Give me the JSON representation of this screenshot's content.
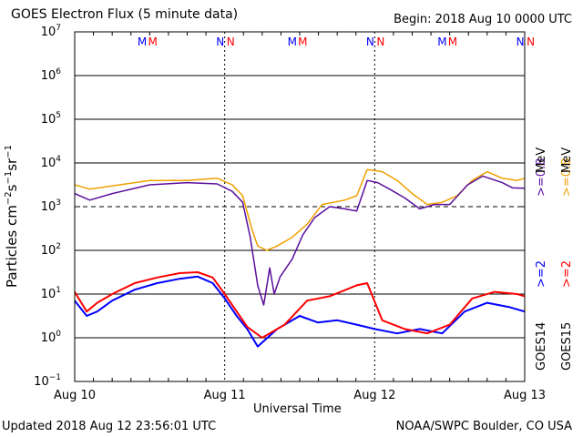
{
  "header": {
    "title": "GOES Electron Flux (5 minute data)",
    "begin": "Begin: 2018 Aug 10 0000 UTC"
  },
  "footer": {
    "updated": "Updated 2018 Aug 12 23:56:01 UTC",
    "credit": "NOAA/SWPC Boulder, CO USA"
  },
  "legend": {
    "goes14_label": "GOES14",
    "goes15_label": "GOES15",
    "goes14_high": ">=0.8",
    "goes15_high": ">=0.8",
    "high_unit": "MeV",
    "goes14_low": ">=2",
    "goes15_low": ">=2"
  },
  "markers": [
    {
      "day": 0.45,
      "text": "M",
      "color": "#0000ff"
    },
    {
      "day": 0.52,
      "text": "M",
      "color": "#ff0000"
    },
    {
      "day": 0.97,
      "text": "N",
      "color": "#0000ff"
    },
    {
      "day": 1.04,
      "text": "N",
      "color": "#ff0000"
    },
    {
      "day": 1.45,
      "text": "M",
      "color": "#0000ff"
    },
    {
      "day": 1.52,
      "text": "M",
      "color": "#ff0000"
    },
    {
      "day": 1.97,
      "text": "N",
      "color": "#0000ff"
    },
    {
      "day": 2.04,
      "text": "N",
      "color": "#ff0000"
    },
    {
      "day": 2.45,
      "text": "M",
      "color": "#0000ff"
    },
    {
      "day": 2.52,
      "text": "M",
      "color": "#ff0000"
    },
    {
      "day": 2.97,
      "text": "N",
      "color": "#0000ff"
    },
    {
      "day": 3.04,
      "text": "N",
      "color": "#ff0000"
    }
  ],
  "chart_data": {
    "type": "line",
    "title": "GOES Electron Flux (5 minute data)",
    "xlabel": "Universal Time",
    "ylabel": "Particles cm-2s-1sr-1",
    "y_scale": "log",
    "ylim_exp": [
      -1,
      7
    ],
    "xlim_days": [
      0,
      3
    ],
    "x_ticks": [
      "Aug 10",
      "Aug 11",
      "Aug 12",
      "Aug 13"
    ],
    "threshold_exp": 3,
    "colors": {
      "goes14_high": "#5a0f9c",
      "goes15_high": "#f0a000",
      "goes14_low": "#0000ff",
      "goes15_low": "#ff0000"
    },
    "series": [
      {
        "name": "GOES14 >=0.8 MeV",
        "key": "goes14_high",
        "points": [
          [
            0,
            3.3
          ],
          [
            0.1,
            3.15
          ],
          [
            0.25,
            3.3
          ],
          [
            0.5,
            3.5
          ],
          [
            0.75,
            3.55
          ],
          [
            0.95,
            3.52
          ],
          [
            1.05,
            3.35
          ],
          [
            1.12,
            3.1
          ],
          [
            1.17,
            2.3
          ],
          [
            1.22,
            1.2
          ],
          [
            1.26,
            0.75
          ],
          [
            1.3,
            1.6
          ],
          [
            1.33,
            1.0
          ],
          [
            1.37,
            1.4
          ],
          [
            1.45,
            1.8
          ],
          [
            1.52,
            2.35
          ],
          [
            1.6,
            2.75
          ],
          [
            1.7,
            3.0
          ],
          [
            1.8,
            2.95
          ],
          [
            1.88,
            2.9
          ],
          [
            1.95,
            3.6
          ],
          [
            2.02,
            3.55
          ],
          [
            2.1,
            3.4
          ],
          [
            2.2,
            3.2
          ],
          [
            2.3,
            2.95
          ],
          [
            2.4,
            3.05
          ],
          [
            2.5,
            3.05
          ],
          [
            2.62,
            3.5
          ],
          [
            2.72,
            3.7
          ],
          [
            2.85,
            3.55
          ],
          [
            2.92,
            3.43
          ],
          [
            3,
            3.42
          ]
        ]
      },
      {
        "name": "GOES15 >=0.8 MeV",
        "key": "goes15_high",
        "points": [
          [
            0,
            3.5
          ],
          [
            0.1,
            3.4
          ],
          [
            0.3,
            3.5
          ],
          [
            0.5,
            3.6
          ],
          [
            0.75,
            3.6
          ],
          [
            0.95,
            3.65
          ],
          [
            1.05,
            3.5
          ],
          [
            1.12,
            3.25
          ],
          [
            1.18,
            2.5
          ],
          [
            1.22,
            2.1
          ],
          [
            1.28,
            2.0
          ],
          [
            1.35,
            2.1
          ],
          [
            1.45,
            2.3
          ],
          [
            1.55,
            2.6
          ],
          [
            1.65,
            3.05
          ],
          [
            1.8,
            3.15
          ],
          [
            1.88,
            3.25
          ],
          [
            1.95,
            3.85
          ],
          [
            2.05,
            3.8
          ],
          [
            2.15,
            3.6
          ],
          [
            2.25,
            3.3
          ],
          [
            2.35,
            3.05
          ],
          [
            2.45,
            3.1
          ],
          [
            2.55,
            3.25
          ],
          [
            2.65,
            3.6
          ],
          [
            2.75,
            3.8
          ],
          [
            2.85,
            3.65
          ],
          [
            2.95,
            3.6
          ],
          [
            3,
            3.65
          ]
        ]
      },
      {
        "name": "GOES14 >=2 MeV",
        "key": "goes14_low",
        "points": [
          [
            0,
            0.85
          ],
          [
            0.08,
            0.5
          ],
          [
            0.15,
            0.6
          ],
          [
            0.25,
            0.85
          ],
          [
            0.4,
            1.1
          ],
          [
            0.55,
            1.25
          ],
          [
            0.7,
            1.35
          ],
          [
            0.82,
            1.4
          ],
          [
            0.92,
            1.25
          ],
          [
            1.0,
            0.9
          ],
          [
            1.08,
            0.5
          ],
          [
            1.15,
            0.2
          ],
          [
            1.22,
            -0.2
          ],
          [
            1.35,
            0.2
          ],
          [
            1.5,
            0.5
          ],
          [
            1.62,
            0.35
          ],
          [
            1.75,
            0.4
          ],
          [
            1.88,
            0.3
          ],
          [
            2.0,
            0.2
          ],
          [
            2.15,
            0.1
          ],
          [
            2.3,
            0.2
          ],
          [
            2.45,
            0.1
          ],
          [
            2.6,
            0.6
          ],
          [
            2.75,
            0.8
          ],
          [
            2.9,
            0.7
          ],
          [
            3,
            0.6
          ]
        ]
      },
      {
        "name": "GOES15 >=2 MeV",
        "key": "goes15_low",
        "points": [
          [
            0,
            1.05
          ],
          [
            0.08,
            0.6
          ],
          [
            0.15,
            0.8
          ],
          [
            0.25,
            1.0
          ],
          [
            0.4,
            1.25
          ],
          [
            0.55,
            1.38
          ],
          [
            0.7,
            1.48
          ],
          [
            0.82,
            1.5
          ],
          [
            0.92,
            1.38
          ],
          [
            1.0,
            1.0
          ],
          [
            1.08,
            0.6
          ],
          [
            1.15,
            0.25
          ],
          [
            1.25,
            0.0
          ],
          [
            1.4,
            0.3
          ],
          [
            1.55,
            0.85
          ],
          [
            1.7,
            0.95
          ],
          [
            1.88,
            1.2
          ],
          [
            1.95,
            1.25
          ],
          [
            2.05,
            0.4
          ],
          [
            2.2,
            0.2
          ],
          [
            2.35,
            0.1
          ],
          [
            2.5,
            0.3
          ],
          [
            2.65,
            0.9
          ],
          [
            2.8,
            1.05
          ],
          [
            2.95,
            1.0
          ],
          [
            3,
            0.95
          ]
        ]
      }
    ]
  }
}
